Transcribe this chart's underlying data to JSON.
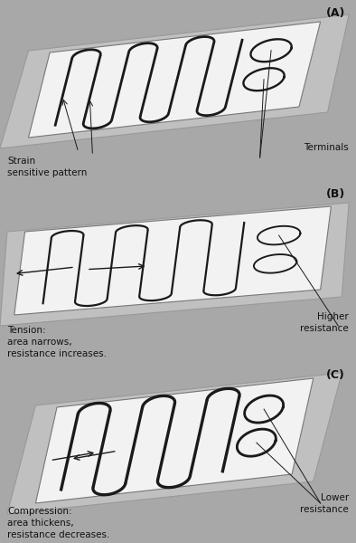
{
  "bg_color": "#a8a8a8",
  "surface_color": "#f2f2f2",
  "base_color": "#c0c0c0",
  "base_edge_color": "#999999",
  "line_color": "#1a1a1a",
  "text_color": "#111111",
  "panels": [
    {
      "label": "(A)",
      "bottom_text": "Strain\nsensitive pattern",
      "right_text": "Terminals",
      "mode": "normal",
      "n_lines": 7,
      "lw": 2.0
    },
    {
      "label": "(B)",
      "bottom_text": "Tension:\narea narrows,\nresistance increases.",
      "right_text": "Higher\nresistance",
      "mode": "tension",
      "n_lines": 7,
      "lw": 1.6
    },
    {
      "label": "(C)",
      "bottom_text": "Compression:\narea thickens,\nresistance decreases.",
      "right_text": "Lower\nresistance",
      "mode": "compression",
      "n_lines": 6,
      "lw": 2.4
    }
  ]
}
